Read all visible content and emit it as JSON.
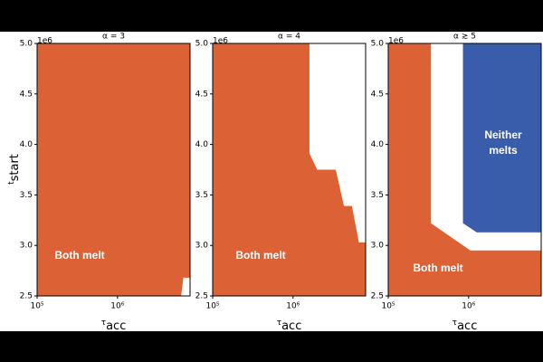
{
  "chart_data": [
    {
      "type": "region",
      "title": "α = 3",
      "ylabel": [
        "t",
        "start"
      ],
      "xlabel": [
        "τ",
        "acc"
      ],
      "offset_label": "1e6",
      "xlog": true,
      "xlim": [
        100000,
        8000000
      ],
      "ylim": [
        2.5,
        5.0
      ],
      "xticks": [
        {
          "value": 100000,
          "label": "10⁵"
        },
        {
          "value": 1000000,
          "label": "10⁶"
        }
      ],
      "yticks": [
        2.5,
        {
          "value": 3,
          "label": "3.0"
        },
        3.5,
        {
          "value": 4,
          "label": "4.0"
        },
        4.5,
        {
          "value": 5,
          "label": "5.0"
        }
      ],
      "regions": [
        {
          "color": "#dc6236",
          "x": [
            100000,
            8000000,
            8000000,
            6600000,
            6200000,
            100000
          ],
          "y": [
            5.0,
            5.0,
            2.68,
            2.68,
            2.5,
            2.5
          ]
        }
      ],
      "annotations": [
        {
          "lines": [
            "Both melt"
          ]
        }
      ]
    },
    {
      "type": "region",
      "title": "α = 4",
      "xlabel": [
        "τ",
        "acc"
      ],
      "offset_label": "1e6",
      "xlog": true,
      "xlim": [
        100000,
        8000000
      ],
      "ylim": [
        2.5,
        5.0
      ],
      "xticks": [
        {
          "value": 100000,
          "label": "10⁵"
        },
        {
          "value": 1000000,
          "label": "10⁶"
        }
      ],
      "yticks": [
        2.5,
        {
          "value": 3,
          "label": "3.0"
        },
        3.5,
        {
          "value": 4,
          "label": "4.0"
        },
        4.5,
        {
          "value": 5,
          "label": "5.0"
        }
      ],
      "regions": [
        {
          "color": "#dc6236",
          "x": [
            100000,
            1600000,
            1600000,
            2000000,
            3400000,
            4300000,
            5400000,
            6600000,
            8000000,
            8000000,
            100000
          ],
          "y": [
            5.0,
            5.0,
            3.91,
            3.75,
            3.75,
            3.39,
            3.39,
            3.03,
            3.03,
            2.5,
            2.5
          ]
        }
      ],
      "annotations": [
        {
          "lines": [
            "Both melt"
          ]
        }
      ]
    },
    {
      "type": "region",
      "title": "α ≳ 5",
      "xlabel": [
        "τ",
        "acc"
      ],
      "offset_label": "1e6",
      "xlog": true,
      "xlim": [
        100000,
        8000000
      ],
      "ylim": [
        2.5,
        5.0
      ],
      "xticks": [
        {
          "value": 100000,
          "label": "10⁵"
        },
        {
          "value": 1000000,
          "label": "10⁶"
        }
      ],
      "yticks": [
        2.5,
        {
          "value": 3,
          "label": "3.0"
        },
        3.5,
        {
          "value": 4,
          "label": "4.0"
        },
        4.5,
        {
          "value": 5,
          "label": "5.0"
        }
      ],
      "regions": [
        {
          "color": "#dc6236",
          "x": [
            100000,
            340000,
            340000,
            1050000,
            8000000,
            8000000,
            100000
          ],
          "y": [
            5.0,
            5.0,
            3.22,
            2.95,
            2.95,
            2.5,
            2.5
          ]
        },
        {
          "color": "#3a5dab",
          "x": [
            850000,
            8000000,
            8000000,
            1260000,
            850000
          ],
          "y": [
            5.0,
            5.0,
            3.13,
            3.13,
            3.22
          ]
        }
      ],
      "annotations": [
        {
          "lines": [
            "Both melt"
          ]
        },
        {
          "lines": [
            "Neither",
            "melts"
          ]
        }
      ]
    }
  ]
}
